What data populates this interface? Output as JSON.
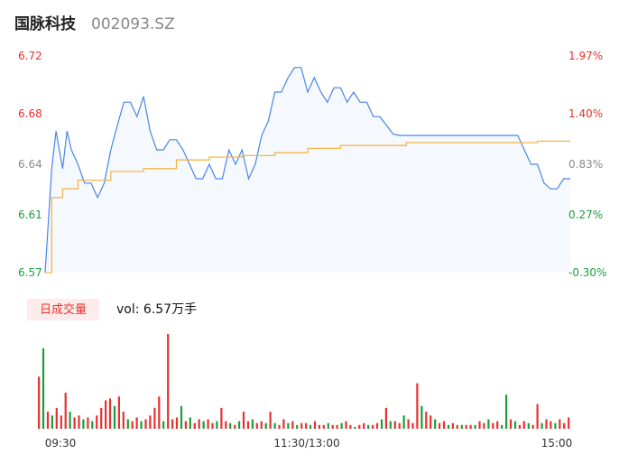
{
  "header": {
    "stock_name": "国脉科技",
    "stock_code": "002093.SZ"
  },
  "colors": {
    "up": "#e8312f",
    "down": "#1a9e3c",
    "neutral": "#8a8a8a",
    "price_line": "#4a86e8",
    "avg_line": "#f3b64b",
    "area_fill": "#f5f8fd",
    "vol_tag_bg": "#fdecea"
  },
  "volume_panel": {
    "tag_label": "日成交量",
    "vol_label": "vol: 6.57万手"
  },
  "chart_data": {
    "type": "line",
    "subtype": "intraday-timeshare",
    "price_axis": {
      "ylim": [
        6.57,
        6.72
      ],
      "ticks": [
        {
          "label": "6.72",
          "value": 6.72,
          "color": "up"
        },
        {
          "label": "6.68",
          "value": 6.68,
          "color": "up"
        },
        {
          "label": "6.64",
          "value": 6.645,
          "color": "neutral"
        },
        {
          "label": "6.61",
          "value": 6.61,
          "color": "down"
        },
        {
          "label": "6.57",
          "value": 6.57,
          "color": "down"
        }
      ]
    },
    "pct_axis": {
      "ticks": [
        {
          "label": "1.97%",
          "value": 6.72,
          "color": "up"
        },
        {
          "label": "1.40%",
          "value": 6.68,
          "color": "up"
        },
        {
          "label": "0.83%",
          "value": 6.645,
          "color": "neutral"
        },
        {
          "label": "0.27%",
          "value": 6.61,
          "color": "down"
        },
        {
          "label": "-0.30%",
          "value": 6.57,
          "color": "down"
        }
      ]
    },
    "x_ticks": [
      "09:30",
      "11:30/13:00",
      "15:00"
    ],
    "series": [
      {
        "role": "price",
        "x": [
          0,
          3,
          5,
          8,
          10,
          12,
          15,
          18,
          21,
          24,
          27,
          30,
          33,
          36,
          39,
          42,
          45,
          48,
          51,
          54,
          57,
          60,
          63,
          66,
          69,
          72,
          75,
          78,
          81,
          84,
          87,
          90,
          93,
          96,
          99,
          102,
          105,
          108,
          111,
          114,
          117,
          120,
          123,
          126,
          129,
          132,
          135,
          138,
          141,
          144,
          147,
          150,
          153,
          156,
          159,
          162,
          165,
          168,
          171,
          174,
          177,
          180,
          183,
          186,
          189,
          192,
          195,
          198,
          201,
          204,
          207,
          210,
          213,
          216,
          219,
          222,
          225,
          228,
          231,
          234,
          237,
          240
        ],
        "values": [
          6.57,
          6.642,
          6.668,
          6.642,
          6.668,
          6.655,
          6.645,
          6.632,
          6.632,
          6.622,
          6.632,
          6.655,
          6.672,
          6.688,
          6.688,
          6.678,
          6.692,
          6.668,
          6.655,
          6.655,
          6.662,
          6.662,
          6.655,
          6.645,
          6.635,
          6.635,
          6.645,
          6.635,
          6.635,
          6.655,
          6.645,
          6.655,
          6.635,
          6.645,
          6.665,
          6.675,
          6.695,
          6.695,
          6.705,
          6.712,
          6.712,
          6.695,
          6.705,
          6.695,
          6.688,
          6.698,
          6.698,
          6.688,
          6.695,
          6.688,
          6.688,
          6.678,
          6.678,
          6.672,
          6.666,
          6.665,
          6.665,
          6.665,
          6.665,
          6.665,
          6.665,
          6.665,
          6.665,
          6.665,
          6.665,
          6.665,
          6.665,
          6.665,
          6.665,
          6.665,
          6.665,
          6.665,
          6.665,
          6.665,
          6.655,
          6.645,
          6.645,
          6.632,
          6.628,
          6.628,
          6.635,
          6.635
        ]
      },
      {
        "role": "average",
        "x": [
          0,
          3,
          8,
          15,
          30,
          45,
          60,
          75,
          90,
          105,
          120,
          135,
          150,
          165,
          180,
          195,
          210,
          225,
          240
        ],
        "values": [
          6.57,
          6.622,
          6.628,
          6.634,
          6.64,
          6.642,
          6.648,
          6.65,
          6.651,
          6.653,
          6.656,
          6.658,
          6.658,
          6.66,
          6.66,
          6.66,
          6.66,
          6.661,
          6.661
        ]
      }
    ],
    "volume_series": {
      "count": 120,
      "values": [
        55,
        85,
        18,
        14,
        22,
        14,
        38,
        18,
        12,
        14,
        10,
        12,
        8,
        14,
        22,
        30,
        32,
        24,
        34,
        18,
        10,
        8,
        12,
        8,
        10,
        14,
        22,
        34,
        8,
        100,
        10,
        12,
        24,
        8,
        12,
        6,
        10,
        8,
        10,
        6,
        8,
        22,
        8,
        6,
        4,
        8,
        18,
        8,
        10,
        6,
        8,
        6,
        18,
        6,
        4,
        10,
        6,
        8,
        4,
        6,
        6,
        4,
        8,
        4,
        4,
        6,
        4,
        4,
        6,
        8,
        4,
        2,
        4,
        6,
        4,
        4,
        6,
        10,
        22,
        8,
        8,
        6,
        14,
        10,
        6,
        48,
        24,
        18,
        14,
        10,
        6,
        8,
        4,
        6,
        4,
        4,
        4,
        4,
        4,
        8,
        6,
        10,
        6,
        8,
        4,
        36,
        10,
        8,
        4,
        8,
        6,
        4,
        26,
        6,
        10,
        8,
        6,
        10,
        6,
        12
      ],
      "colors": [
        "up",
        "down",
        "up",
        "down",
        "up",
        "up",
        "up",
        "down",
        "up",
        "up",
        "down",
        "up",
        "down",
        "up",
        "up",
        "up",
        "up",
        "down",
        "up",
        "up",
        "down",
        "up",
        "up",
        "down",
        "up",
        "up",
        "up",
        "up",
        "down",
        "up",
        "up",
        "up",
        "down",
        "up",
        "down",
        "up",
        "up",
        "down",
        "up",
        "up",
        "down",
        "up",
        "up",
        "down",
        "up",
        "down",
        "up",
        "up",
        "down",
        "up",
        "up",
        "down",
        "up",
        "down",
        "up",
        "up",
        "down",
        "up",
        "down",
        "up",
        "up",
        "down",
        "up",
        "up",
        "up",
        "down",
        "up",
        "up",
        "down",
        "up",
        "up",
        "down",
        "up",
        "up",
        "down",
        "up",
        "up",
        "down",
        "up",
        "down",
        "up",
        "up",
        "down",
        "up",
        "up",
        "up",
        "down",
        "up",
        "up",
        "down",
        "up",
        "up",
        "down",
        "up",
        "up",
        "down",
        "up",
        "up",
        "down",
        "up",
        "up",
        "down",
        "up",
        "up",
        "down",
        "down",
        "up",
        "down",
        "up",
        "up",
        "down",
        "up",
        "up",
        "down",
        "up",
        "up",
        "down",
        "up",
        "up",
        "up"
      ]
    }
  }
}
